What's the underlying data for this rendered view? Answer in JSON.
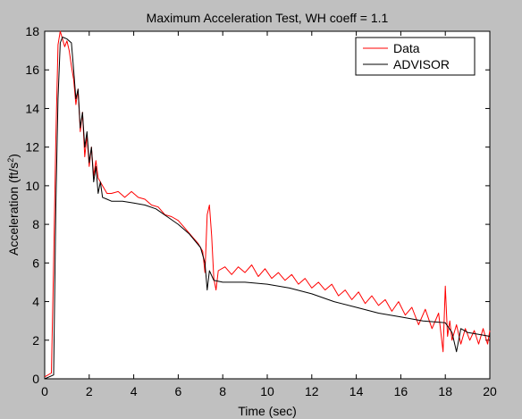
{
  "chart_data": {
    "type": "line",
    "title": "Maximum Acceleration Test, WH coeff = 1.1",
    "xlabel": "Time (sec)",
    "ylabel_main": "Acceleration (ft/s",
    "ylabel_sup": "2",
    "ylabel_tail": ")",
    "xlim": [
      0,
      20
    ],
    "ylim": [
      0,
      18
    ],
    "xticks": [
      0,
      2,
      4,
      6,
      8,
      10,
      12,
      14,
      16,
      18,
      20
    ],
    "yticks": [
      0,
      2,
      4,
      6,
      8,
      10,
      12,
      14,
      16,
      18
    ],
    "grid": false,
    "legend_position": "top-right",
    "series": [
      {
        "name": "Data",
        "color": "#ff0000",
        "x": [
          0,
          0.3,
          0.4,
          0.5,
          0.6,
          0.7,
          0.8,
          0.9,
          1.0,
          1.1,
          1.2,
          1.3,
          1.4,
          1.5,
          1.6,
          1.7,
          1.8,
          1.9,
          2.0,
          2.1,
          2.2,
          2.3,
          2.4,
          2.6,
          2.8,
          3.0,
          3.3,
          3.6,
          3.9,
          4.2,
          4.5,
          4.8,
          5.1,
          5.4,
          5.7,
          6.0,
          6.3,
          6.6,
          6.9,
          7.1,
          7.2,
          7.3,
          7.4,
          7.5,
          7.6,
          7.7,
          7.8,
          8.1,
          8.4,
          8.7,
          9.0,
          9.3,
          9.6,
          9.9,
          10.2,
          10.5,
          10.8,
          11.1,
          11.4,
          11.7,
          12.0,
          12.3,
          12.6,
          12.9,
          13.2,
          13.5,
          13.8,
          14.1,
          14.4,
          14.7,
          15.0,
          15.3,
          15.6,
          15.9,
          16.2,
          16.5,
          16.8,
          17.1,
          17.4,
          17.7,
          17.9,
          18.0,
          18.1,
          18.2,
          18.3,
          18.5,
          18.7,
          18.9,
          19.1,
          19.3,
          19.5,
          19.7,
          19.9,
          20.0
        ],
        "y": [
          0.1,
          0.3,
          6.0,
          12.5,
          17.3,
          18.0,
          17.6,
          17.2,
          17.5,
          17.0,
          16.2,
          15.5,
          14.2,
          15.0,
          12.8,
          13.8,
          11.5,
          12.6,
          11.0,
          12.0,
          10.5,
          11.3,
          10.4,
          10.0,
          9.6,
          9.6,
          9.7,
          9.4,
          9.7,
          9.4,
          9.3,
          9.0,
          8.9,
          8.5,
          8.4,
          8.2,
          7.8,
          7.4,
          7.0,
          6.6,
          5.5,
          8.5,
          9.0,
          7.4,
          5.2,
          4.6,
          5.6,
          5.8,
          5.4,
          5.8,
          5.5,
          5.9,
          5.3,
          5.7,
          5.2,
          5.5,
          5.1,
          5.4,
          4.9,
          5.2,
          4.7,
          5.0,
          4.6,
          4.9,
          4.3,
          4.6,
          4.1,
          4.5,
          3.9,
          4.3,
          3.8,
          4.1,
          3.5,
          4.0,
          3.3,
          3.7,
          2.8,
          3.6,
          2.6,
          3.4,
          1.4,
          4.8,
          2.2,
          3.0,
          2.0,
          2.8,
          1.8,
          2.6,
          2.0,
          2.5,
          1.8,
          2.6,
          1.8,
          2.5
        ]
      },
      {
        "name": "ADVISOR",
        "color": "#000000",
        "x": [
          0,
          0.4,
          0.5,
          0.6,
          0.7,
          0.8,
          1.0,
          1.2,
          1.3,
          1.4,
          1.5,
          1.6,
          1.7,
          1.8,
          1.9,
          2.0,
          2.1,
          2.2,
          2.3,
          2.4,
          2.5,
          2.6,
          2.8,
          3.0,
          3.5,
          4.0,
          4.5,
          5.0,
          5.5,
          6.0,
          6.5,
          7.0,
          7.2,
          7.3,
          7.4,
          7.6,
          8.0,
          9.0,
          10.0,
          11.0,
          12.0,
          13.0,
          14.0,
          15.0,
          16.0,
          17.0,
          18.0,
          18.3,
          18.5,
          18.7,
          19.0,
          19.5,
          20.0
        ],
        "y": [
          0,
          0.2,
          9.0,
          14.5,
          17.4,
          17.7,
          17.6,
          17.4,
          16.0,
          14.5,
          15.0,
          13.0,
          13.8,
          12.0,
          12.8,
          11.2,
          12.0,
          10.2,
          11.0,
          9.6,
          10.2,
          9.4,
          9.3,
          9.2,
          9.2,
          9.1,
          9.0,
          8.8,
          8.4,
          8.0,
          7.5,
          6.8,
          6.0,
          4.6,
          5.6,
          5.1,
          5.0,
          5.0,
          4.9,
          4.7,
          4.4,
          4.0,
          3.7,
          3.4,
          3.2,
          3.0,
          2.9,
          2.4,
          1.4,
          2.6,
          2.4,
          2.3,
          2.2
        ]
      }
    ]
  }
}
